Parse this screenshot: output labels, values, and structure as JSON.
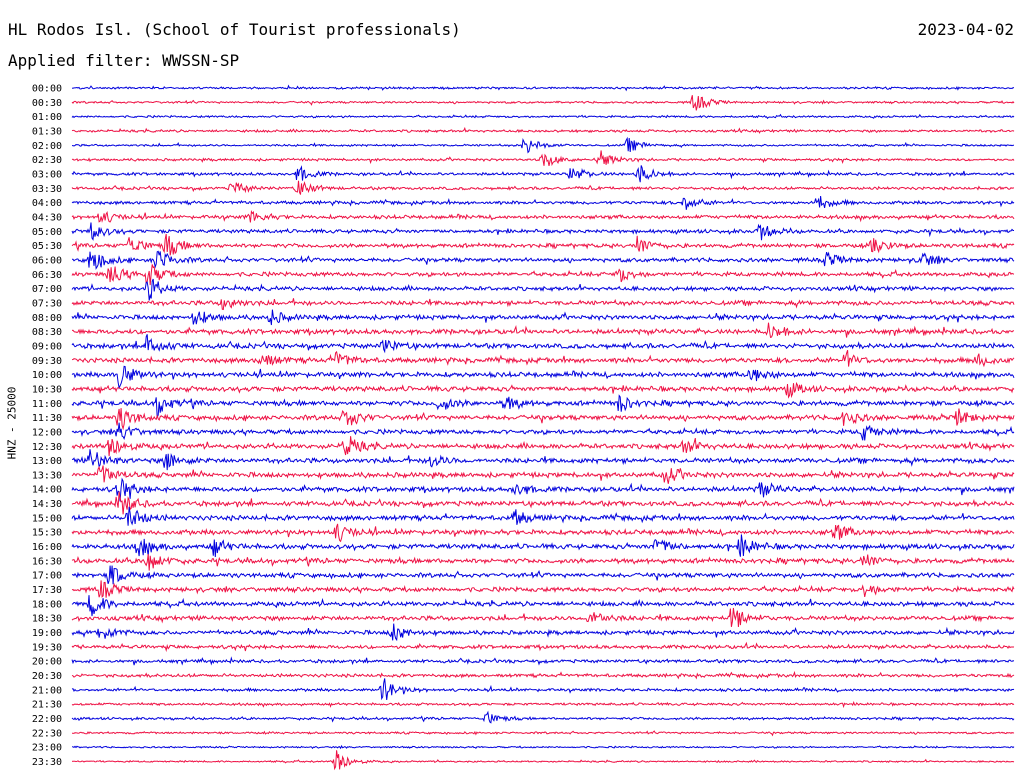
{
  "header": {
    "station": "HL Rodos Isl. (School of Tourist professionals)",
    "date": "2023-04-02",
    "filter": "Applied filter: WWSSN-SP"
  },
  "chart_data": {
    "type": "line",
    "title": "HL Rodos Isl. (School of Tourist professionals)",
    "ylabel": "HNZ - 25000",
    "grid": false,
    "colors": [
      "#0000dd",
      "#ee1144"
    ],
    "row_labels": [
      "00:00",
      "00:30",
      "01:00",
      "01:30",
      "02:00",
      "02:30",
      "03:00",
      "03:30",
      "04:00",
      "04:30",
      "05:00",
      "05:30",
      "06:00",
      "06:30",
      "07:00",
      "07:30",
      "08:00",
      "08:30",
      "09:00",
      "09:30",
      "10:00",
      "10:30",
      "11:00",
      "11:30",
      "12:00",
      "12:30",
      "13:00",
      "13:30",
      "14:00",
      "14:30",
      "15:00",
      "15:30",
      "16:00",
      "16:30",
      "17:00",
      "17:30",
      "18:00",
      "18:30",
      "19:00",
      "19:30",
      "20:00",
      "20:30",
      "21:00",
      "21:30",
      "22:00",
      "22:30",
      "23:00",
      "23:30"
    ],
    "noise_level": [
      0.5,
      0.5,
      0.5,
      0.6,
      0.5,
      0.6,
      0.7,
      0.7,
      0.8,
      0.9,
      0.9,
      1.0,
      1.0,
      1.0,
      1.0,
      1.1,
      1.1,
      1.2,
      1.2,
      1.2,
      1.2,
      1.2,
      1.2,
      1.2,
      1.1,
      1.2,
      1.2,
      1.2,
      1.2,
      1.2,
      1.2,
      1.2,
      1.2,
      1.2,
      1.1,
      1.1,
      1.1,
      1.1,
      1.0,
      0.9,
      0.8,
      0.8,
      0.7,
      0.6,
      0.6,
      0.5,
      0.4,
      0.4
    ],
    "events": [
      {
        "row": 1,
        "pos": 0.66,
        "amp": 2.5
      },
      {
        "row": 4,
        "pos": 0.48,
        "amp": 2.5
      },
      {
        "row": 4,
        "pos": 0.59,
        "amp": 1.8
      },
      {
        "row": 5,
        "pos": 0.5,
        "amp": 2.2
      },
      {
        "row": 5,
        "pos": 0.56,
        "amp": 2.2
      },
      {
        "row": 6,
        "pos": 0.53,
        "amp": 2.0
      },
      {
        "row": 6,
        "pos": 0.6,
        "amp": 2.6
      },
      {
        "row": 6,
        "pos": 0.24,
        "amp": 2.0
      },
      {
        "row": 7,
        "pos": 0.17,
        "amp": 1.8
      },
      {
        "row": 7,
        "pos": 0.24,
        "amp": 2.2
      },
      {
        "row": 8,
        "pos": 0.65,
        "amp": 1.8
      },
      {
        "row": 8,
        "pos": 0.79,
        "amp": 2.0
      },
      {
        "row": 9,
        "pos": 0.03,
        "amp": 1.8
      },
      {
        "row": 9,
        "pos": 0.19,
        "amp": 1.5
      },
      {
        "row": 10,
        "pos": 0.02,
        "amp": 2.2
      },
      {
        "row": 10,
        "pos": 0.73,
        "amp": 2.0
      },
      {
        "row": 11,
        "pos": 0.06,
        "amp": 2.4
      },
      {
        "row": 11,
        "pos": 0.1,
        "amp": 3.0
      },
      {
        "row": 11,
        "pos": 0.6,
        "amp": 2.2
      },
      {
        "row": 11,
        "pos": 0.85,
        "amp": 2.2
      },
      {
        "row": 12,
        "pos": 0.02,
        "amp": 3.2
      },
      {
        "row": 12,
        "pos": 0.09,
        "amp": 3.0
      },
      {
        "row": 12,
        "pos": 0.8,
        "amp": 1.8
      },
      {
        "row": 12,
        "pos": 0.9,
        "amp": 2.0
      },
      {
        "row": 13,
        "pos": 0.04,
        "amp": 2.8
      },
      {
        "row": 13,
        "pos": 0.08,
        "amp": 3.0
      },
      {
        "row": 13,
        "pos": 0.58,
        "amp": 2.0
      },
      {
        "row": 14,
        "pos": 0.08,
        "amp": 3.0
      },
      {
        "row": 15,
        "pos": 0.16,
        "amp": 1.8
      },
      {
        "row": 16,
        "pos": 0.13,
        "amp": 2.0
      },
      {
        "row": 16,
        "pos": 0.21,
        "amp": 1.8
      },
      {
        "row": 17,
        "pos": 0.74,
        "amp": 2.0
      },
      {
        "row": 18,
        "pos": 0.08,
        "amp": 2.8
      },
      {
        "row": 18,
        "pos": 0.33,
        "amp": 1.6
      },
      {
        "row": 19,
        "pos": 0.2,
        "amp": 2.0
      },
      {
        "row": 19,
        "pos": 0.28,
        "amp": 2.0
      },
      {
        "row": 19,
        "pos": 0.82,
        "amp": 1.8
      },
      {
        "row": 19,
        "pos": 0.96,
        "amp": 1.6
      },
      {
        "row": 20,
        "pos": 0.05,
        "amp": 3.0
      },
      {
        "row": 20,
        "pos": 0.72,
        "amp": 2.0
      },
      {
        "row": 21,
        "pos": 0.76,
        "amp": 1.8
      },
      {
        "row": 22,
        "pos": 0.09,
        "amp": 2.8
      },
      {
        "row": 22,
        "pos": 0.39,
        "amp": 1.8
      },
      {
        "row": 22,
        "pos": 0.46,
        "amp": 1.8
      },
      {
        "row": 22,
        "pos": 0.58,
        "amp": 2.0
      },
      {
        "row": 23,
        "pos": 0.05,
        "amp": 3.0
      },
      {
        "row": 23,
        "pos": 0.29,
        "amp": 2.6
      },
      {
        "row": 23,
        "pos": 0.82,
        "amp": 2.0
      },
      {
        "row": 23,
        "pos": 0.94,
        "amp": 2.0
      },
      {
        "row": 24,
        "pos": 0.05,
        "amp": 2.4
      },
      {
        "row": 24,
        "pos": 0.84,
        "amp": 2.0
      },
      {
        "row": 25,
        "pos": 0.04,
        "amp": 2.8
      },
      {
        "row": 25,
        "pos": 0.29,
        "amp": 2.6
      },
      {
        "row": 25,
        "pos": 0.65,
        "amp": 1.8
      },
      {
        "row": 26,
        "pos": 0.02,
        "amp": 3.0
      },
      {
        "row": 26,
        "pos": 0.1,
        "amp": 2.4
      },
      {
        "row": 26,
        "pos": 0.38,
        "amp": 1.6
      },
      {
        "row": 27,
        "pos": 0.03,
        "amp": 2.6
      },
      {
        "row": 27,
        "pos": 0.63,
        "amp": 2.0
      },
      {
        "row": 28,
        "pos": 0.05,
        "amp": 2.8
      },
      {
        "row": 28,
        "pos": 0.47,
        "amp": 1.8
      },
      {
        "row": 28,
        "pos": 0.73,
        "amp": 2.0
      },
      {
        "row": 29,
        "pos": 0.05,
        "amp": 3.0
      },
      {
        "row": 30,
        "pos": 0.06,
        "amp": 2.8
      },
      {
        "row": 30,
        "pos": 0.47,
        "amp": 1.8
      },
      {
        "row": 31,
        "pos": 0.28,
        "amp": 2.4
      },
      {
        "row": 31,
        "pos": 0.81,
        "amp": 2.0
      },
      {
        "row": 32,
        "pos": 0.07,
        "amp": 2.6
      },
      {
        "row": 32,
        "pos": 0.15,
        "amp": 2.0
      },
      {
        "row": 32,
        "pos": 0.62,
        "amp": 2.0
      },
      {
        "row": 32,
        "pos": 0.71,
        "amp": 2.6
      },
      {
        "row": 33,
        "pos": 0.08,
        "amp": 2.6
      },
      {
        "row": 33,
        "pos": 0.84,
        "amp": 1.8
      },
      {
        "row": 34,
        "pos": 0.04,
        "amp": 2.8
      },
      {
        "row": 35,
        "pos": 0.03,
        "amp": 2.4
      },
      {
        "row": 35,
        "pos": 0.84,
        "amp": 1.8
      },
      {
        "row": 36,
        "pos": 0.02,
        "amp": 3.0
      },
      {
        "row": 37,
        "pos": 0.55,
        "amp": 2.4
      },
      {
        "row": 37,
        "pos": 0.7,
        "amp": 2.8
      },
      {
        "row": 38,
        "pos": 0.03,
        "amp": 2.0
      },
      {
        "row": 38,
        "pos": 0.34,
        "amp": 2.2
      },
      {
        "row": 42,
        "pos": 0.33,
        "amp": 3.0
      },
      {
        "row": 44,
        "pos": 0.44,
        "amp": 1.6
      },
      {
        "row": 47,
        "pos": 0.28,
        "amp": 3.0
      }
    ]
  }
}
